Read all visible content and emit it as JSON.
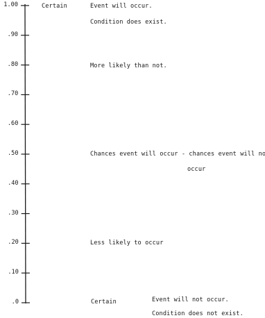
{
  "scale": {
    "ticks": [
      {
        "label": "1.00",
        "value": 1.0
      },
      {
        "label": ".90",
        "value": 0.9
      },
      {
        "label": ".80",
        "value": 0.8
      },
      {
        "label": ".70",
        "value": 0.7
      },
      {
        "label": ".60",
        "value": 0.6
      },
      {
        "label": ".50",
        "value": 0.5
      },
      {
        "label": ".40",
        "value": 0.4
      },
      {
        "label": ".30",
        "value": 0.3
      },
      {
        "label": ".20",
        "value": 0.2
      },
      {
        "label": ".10",
        "value": 0.1
      },
      {
        "label": ".0",
        "value": 0.0
      }
    ]
  },
  "annotations": {
    "top_certain": "Certain",
    "top_event": "Event will occur.",
    "top_condition": "Condition does exist.",
    "more_likely": "More likely than not.",
    "half_line1": "Chances event will occur - chances event will not",
    "half_line2": "occur",
    "less_likely": "Less likely to occur",
    "bottom_certain": "Certain",
    "bottom_event": "Event will not occur.",
    "bottom_condition": "Condition does not exist."
  }
}
